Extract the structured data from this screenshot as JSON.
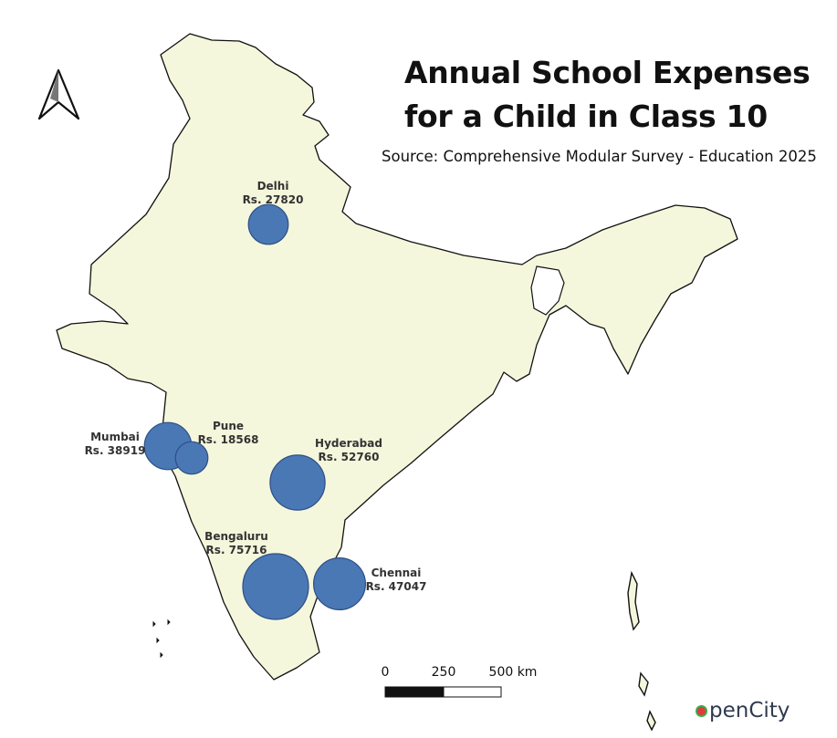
{
  "title": {
    "line1": "Annual School Expenses",
    "line2": "for a Child in Class 10"
  },
  "source": "Source: Comprehensive Modular Survey - Education 2025",
  "map": {
    "land_color": "#f5f7dc",
    "border_color": "#111111",
    "bubble_color": "#4a78b5",
    "bubble_stroke": "#2d4f86"
  },
  "cities": [
    {
      "name": "Delhi",
      "value_label": "Rs. 27820",
      "value": 27820
    },
    {
      "name": "Mumbai",
      "value_label": "Rs. 38919",
      "value": 38919
    },
    {
      "name": "Pune",
      "value_label": "Rs. 18568",
      "value": 18568
    },
    {
      "name": "Hyderabad",
      "value_label": "Rs. 52760",
      "value": 52760
    },
    {
      "name": "Bengaluru",
      "value_label": "Rs. 75716",
      "value": 75716
    },
    {
      "name": "Chennai",
      "value_label": "Rs. 47047",
      "value": 47047
    }
  ],
  "scale_bar": {
    "ticks": [
      "0",
      "250",
      "500 km"
    ]
  },
  "north_arrow": "north-arrow-icon",
  "logo": {
    "text": "penCity"
  }
}
